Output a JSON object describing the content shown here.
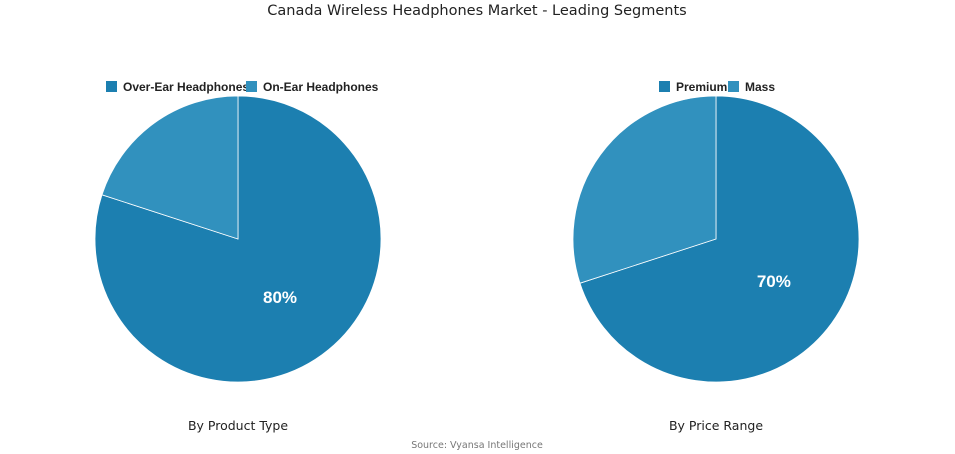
{
  "title": "Canada Wireless Headphones Market - Leading Segments",
  "source": "Source: Vyansa Intelligence",
  "colors": {
    "primary": "#1c7fb0",
    "secondary": "#3191be"
  },
  "chart_data": [
    {
      "type": "pie",
      "subtitle": "By Product Type",
      "legend_placement": "top",
      "slices": [
        {
          "name": "Over-Ear Headphones",
          "value": 80,
          "label": "80%"
        },
        {
          "name": "On-Ear Headphones",
          "value": 20,
          "label": ""
        }
      ]
    },
    {
      "type": "pie",
      "subtitle": "By Price Range",
      "legend_placement": "top",
      "slices": [
        {
          "name": "Premium",
          "value": 70,
          "label": "70%"
        },
        {
          "name": "Mass",
          "value": 30,
          "label": ""
        }
      ]
    }
  ]
}
